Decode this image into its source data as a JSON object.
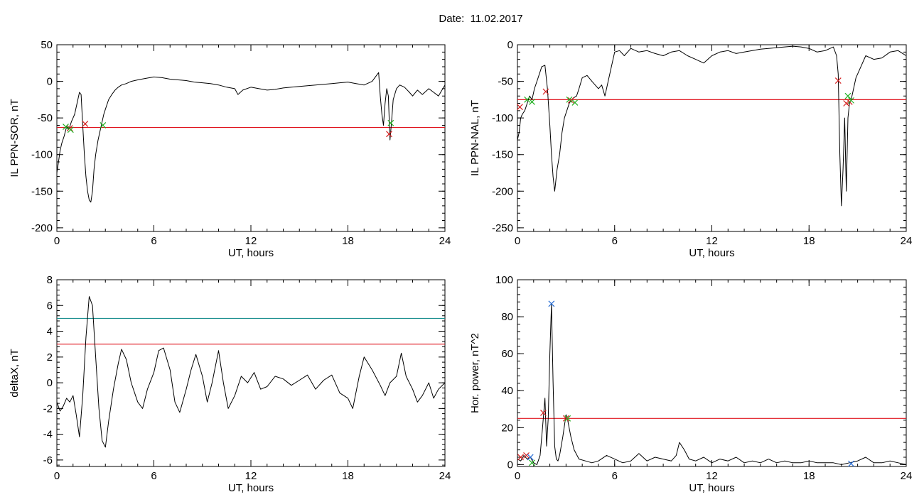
{
  "page": {
    "date_label": "Date:",
    "date_value": "11.02.2017"
  },
  "colors": {
    "signal": "#000000",
    "selection": "#1f66d1",
    "threshold_red": "#e0141e",
    "threshold_cyan": "#1a8f8f",
    "marker_red": "#d41e1e",
    "marker_green": "#22b022",
    "marker_blue": "#2a6fd6"
  },
  "chart_data": [
    {
      "id": "sor",
      "type": "line",
      "ylabel": "IL PPN-SOR, nT",
      "xlabel": "UT, hours",
      "xlim": [
        0,
        24
      ],
      "ylim": [
        -205,
        50
      ],
      "xticks": [
        0,
        6,
        12,
        18,
        24
      ],
      "yticks": [
        50,
        0,
        -50,
        -100,
        -150,
        -200
      ],
      "series": [
        {
          "x": [
            0,
            0.1,
            0.2,
            0.3,
            0.45,
            0.6,
            0.75,
            0.9,
            1.0,
            1.1,
            1.25,
            1.4,
            1.5,
            1.6,
            1.7,
            1.8,
            1.9,
            2.0,
            2.1,
            2.2,
            2.3,
            2.4,
            2.55,
            2.7,
            2.8,
            2.9,
            3.0,
            3.2,
            3.4,
            3.6,
            3.8,
            4.0,
            4.3,
            4.6,
            5.0,
            5.5,
            6.0,
            6.5,
            7.0,
            7.5,
            8.0,
            8.5,
            9.0,
            9.5,
            10.0,
            10.5,
            11.0,
            11.2,
            11.5,
            12.0,
            12.5,
            13.0,
            13.5,
            14.0,
            14.5,
            15.0,
            15.5,
            16.0,
            16.5,
            17.0,
            17.5,
            18.0,
            18.5,
            19.0,
            19.5,
            19.9,
            20.0,
            20.1,
            20.2,
            20.3,
            20.4,
            20.5,
            20.55,
            20.6,
            20.7,
            20.8,
            21.0,
            21.2,
            21.5,
            21.8,
            22.0,
            22.3,
            22.6,
            23.0,
            23.3,
            23.6,
            24.0
          ],
          "y": [
            -125,
            -110,
            -95,
            -85,
            -75,
            -62,
            -65,
            -55,
            -50,
            -45,
            -30,
            -15,
            -18,
            -60,
            -100,
            -130,
            -150,
            -162,
            -165,
            -150,
            -120,
            -100,
            -80,
            -65,
            -55,
            -45,
            -38,
            -25,
            -18,
            -12,
            -8,
            -5,
            -3,
            0,
            2,
            4,
            6,
            5,
            3,
            2,
            1,
            -1,
            -2,
            -3,
            -5,
            -8,
            -10,
            -18,
            -12,
            -8,
            -10,
            -12,
            -11,
            -9,
            -8,
            -7,
            -6,
            -5,
            -4,
            -3,
            -2,
            -1,
            -3,
            -5,
            0,
            12,
            -20,
            -45,
            -60,
            -30,
            -10,
            -20,
            -50,
            -80,
            -55,
            -25,
            -10,
            -5,
            -8,
            -15,
            -20,
            -12,
            -18,
            -10,
            -15,
            -20,
            -5
          ]
        }
      ],
      "thresholds": [
        {
          "y": -63,
          "color": "red"
        }
      ],
      "markers_red": [
        [
          0.8,
          -64
        ],
        [
          1.75,
          -58
        ],
        [
          20.55,
          -72
        ]
      ],
      "markers_green": [
        [
          0.55,
          -62
        ],
        [
          0.85,
          -66
        ],
        [
          2.85,
          -60
        ],
        [
          20.65,
          -57
        ]
      ]
    },
    {
      "id": "nal",
      "type": "line",
      "ylabel": "IL PPN-NAL, nT",
      "xlabel": "UT, hours",
      "xlim": [
        0,
        24
      ],
      "ylim": [
        -255,
        0
      ],
      "xticks": [
        0,
        6,
        12,
        18,
        24
      ],
      "yticks": [
        0,
        -50,
        -100,
        -150,
        -200,
        -250
      ],
      "series": [
        {
          "x": [
            0,
            0.1,
            0.2,
            0.3,
            0.45,
            0.6,
            0.75,
            0.9,
            1.05,
            1.2,
            1.35,
            1.5,
            1.7,
            1.85,
            2.0,
            2.1,
            2.2,
            2.3,
            2.45,
            2.6,
            2.75,
            2.9,
            3.05,
            3.2,
            3.35,
            3.5,
            3.65,
            3.8,
            4.0,
            4.3,
            4.6,
            5.0,
            5.2,
            5.4,
            5.6,
            5.8,
            6.0,
            6.3,
            6.6,
            7.0,
            7.5,
            8.0,
            8.5,
            9.0,
            9.5,
            10.0,
            10.5,
            11.0,
            11.5,
            12.0,
            12.5,
            13.0,
            13.5,
            14.0,
            14.5,
            15.0,
            15.5,
            16.0,
            16.5,
            17.0,
            17.5,
            18.0,
            18.5,
            19.0,
            19.3,
            19.5,
            19.7,
            19.8,
            19.9,
            20.0,
            20.1,
            20.2,
            20.3,
            20.4,
            20.5,
            20.6,
            20.7,
            20.9,
            21.2,
            21.5,
            22.0,
            22.5,
            23.0,
            23.5,
            24.0
          ],
          "y": [
            -130,
            -120,
            -100,
            -95,
            -90,
            -80,
            -70,
            -75,
            -60,
            -50,
            -40,
            -30,
            -28,
            -60,
            -110,
            -150,
            -180,
            -200,
            -170,
            -150,
            -120,
            -100,
            -90,
            -80,
            -75,
            -72,
            -70,
            -60,
            -45,
            -42,
            -50,
            -60,
            -55,
            -70,
            -50,
            -30,
            -10,
            -8,
            -15,
            -5,
            -10,
            -8,
            -12,
            -15,
            -10,
            -8,
            -15,
            -20,
            -25,
            -15,
            -10,
            -8,
            -12,
            -10,
            -8,
            -6,
            -5,
            -4,
            -3,
            -2,
            -3,
            -5,
            -10,
            -8,
            -5,
            -3,
            -15,
            -40,
            -150,
            -220,
            -170,
            -100,
            -200,
            -100,
            -80,
            -75,
            -65,
            -45,
            -30,
            -15,
            -20,
            -18,
            -10,
            -8,
            -15
          ]
        }
      ],
      "thresholds": [
        {
          "y": -75,
          "color": "red"
        }
      ],
      "markers_red": [
        [
          0.15,
          -85
        ],
        [
          1.75,
          -64
        ],
        [
          3.3,
          -76
        ],
        [
          19.8,
          -49
        ],
        [
          20.3,
          -80
        ],
        [
          20.5,
          -78
        ]
      ],
      "markers_green": [
        [
          0.6,
          -75
        ],
        [
          0.9,
          -78
        ],
        [
          3.2,
          -75
        ],
        [
          3.55,
          -79
        ],
        [
          20.4,
          -70
        ],
        [
          20.6,
          -76
        ]
      ]
    },
    {
      "id": "deltax",
      "type": "line",
      "ylabel": "deltaX, nT",
      "xlabel": "UT, hours",
      "xlim": [
        0,
        24
      ],
      "ylim": [
        -6.5,
        8
      ],
      "xticks": [
        0,
        6,
        12,
        18,
        24
      ],
      "yticks": [
        8,
        6,
        4,
        2,
        0,
        -2,
        -4,
        -6
      ],
      "series": [
        {
          "x": [
            0,
            0.2,
            0.4,
            0.6,
            0.8,
            1.0,
            1.2,
            1.4,
            1.6,
            1.8,
            2.0,
            2.2,
            2.4,
            2.6,
            2.8,
            3.0,
            3.2,
            3.5,
            3.8,
            4.0,
            4.3,
            4.6,
            5.0,
            5.3,
            5.6,
            6.0,
            6.3,
            6.6,
            7.0,
            7.3,
            7.6,
            8.0,
            8.3,
            8.6,
            9.0,
            9.3,
            9.6,
            10.0,
            10.3,
            10.6,
            11.0,
            11.4,
            11.8,
            12.2,
            12.6,
            13.0,
            13.5,
            14.0,
            14.5,
            15.0,
            15.5,
            16.0,
            16.5,
            17.0,
            17.5,
            18.0,
            18.3,
            18.7,
            19.0,
            19.5,
            20.0,
            20.3,
            20.6,
            21.0,
            21.3,
            21.6,
            22.0,
            22.3,
            22.6,
            23.0,
            23.3,
            23.6,
            24.0
          ],
          "y": [
            -1.5,
            -2.2,
            -1.8,
            -1.2,
            -1.5,
            -1.0,
            -2.5,
            -4.2,
            -1.0,
            3.5,
            6.7,
            6.0,
            2.0,
            -2.0,
            -4.5,
            -5.0,
            -3.0,
            -0.5,
            1.5,
            2.6,
            1.8,
            0.0,
            -1.5,
            -2.0,
            -0.5,
            0.8,
            2.5,
            2.7,
            1.0,
            -1.5,
            -2.3,
            -0.5,
            1.0,
            2.2,
            0.5,
            -1.5,
            0.0,
            2.5,
            0.0,
            -2.0,
            -1.0,
            0.5,
            0.0,
            0.8,
            -0.5,
            -0.3,
            0.5,
            0.3,
            -0.2,
            0.2,
            0.6,
            -0.5,
            0.2,
            0.6,
            -0.8,
            -1.2,
            -2.0,
            0.5,
            2.0,
            1.0,
            -0.2,
            -1.0,
            0.0,
            0.5,
            2.3,
            0.5,
            -0.5,
            -1.5,
            -1.0,
            0.0,
            -1.2,
            -0.5,
            0.0
          ]
        }
      ],
      "thresholds": [
        {
          "y": 5,
          "color": "cyan"
        },
        {
          "y": 3,
          "color": "red"
        }
      ]
    },
    {
      "id": "power",
      "type": "line",
      "ylabel": "Hor. power, nT^2",
      "xlabel": "UT, hours",
      "xlim": [
        0,
        24
      ],
      "ylim": [
        -1,
        100
      ],
      "xticks": [
        0,
        6,
        12,
        18,
        24
      ],
      "yticks": [
        100,
        80,
        60,
        40,
        20,
        0
      ],
      "series": [
        {
          "x": [
            0,
            0.2,
            0.4,
            0.6,
            0.8,
            1.0,
            1.2,
            1.4,
            1.55,
            1.7,
            1.8,
            1.9,
            2.0,
            2.1,
            2.2,
            2.3,
            2.4,
            2.5,
            2.6,
            2.8,
            3.0,
            3.1,
            3.3,
            3.5,
            3.8,
            4.2,
            4.6,
            5.0,
            5.5,
            6.0,
            6.5,
            7.0,
            7.5,
            8.0,
            8.5,
            9.0,
            9.5,
            9.8,
            10.0,
            10.3,
            10.6,
            11.0,
            11.5,
            12.0,
            12.5,
            13.0,
            13.5,
            14.0,
            14.5,
            15.0,
            15.5,
            16.0,
            16.5,
            17.0,
            17.5,
            18.0,
            18.5,
            19.0,
            19.5,
            20.0,
            20.5,
            21.0,
            21.5,
            22.0,
            22.5,
            23.0,
            23.5,
            24.0
          ],
          "y": [
            3,
            2,
            5,
            3,
            4,
            1,
            0,
            5,
            20,
            36,
            10,
            25,
            60,
            87,
            45,
            10,
            3,
            2,
            5,
            15,
            27,
            24,
            15,
            8,
            3,
            2,
            1,
            2,
            5,
            3,
            1,
            2,
            6,
            2,
            4,
            3,
            2,
            5,
            12,
            8,
            3,
            2,
            4,
            1,
            3,
            2,
            4,
            1,
            2,
            1,
            3,
            1,
            2,
            1,
            1,
            2,
            1,
            1,
            1,
            0,
            1,
            2,
            4,
            1,
            1,
            2,
            1,
            0
          ]
        }
      ],
      "thresholds": [
        {
          "y": 25,
          "color": "red"
        }
      ],
      "markers_red": [
        [
          0.2,
          4
        ],
        [
          0.55,
          5
        ],
        [
          1.6,
          28
        ],
        [
          3.0,
          25
        ]
      ],
      "markers_green": [
        [
          0.9,
          1
        ],
        [
          3.1,
          25
        ]
      ],
      "markers_blue": [
        [
          0.8,
          4
        ],
        [
          2.1,
          87
        ],
        [
          20.6,
          0.5
        ]
      ]
    }
  ]
}
